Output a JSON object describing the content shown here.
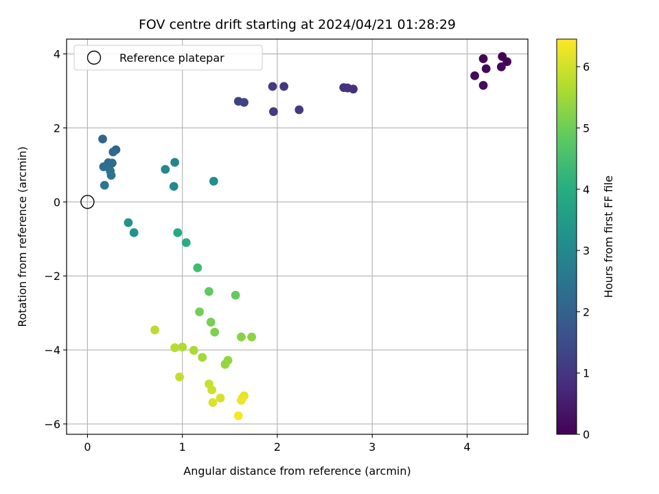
{
  "chart_data": {
    "type": "scatter",
    "title": "FOV centre drift starting at 2024/04/21 01:28:29",
    "xlabel": "Angular distance from reference (arcmin)",
    "ylabel": "Rotation from reference (arcmin)",
    "xlim": [
      -0.22,
      4.64
    ],
    "ylim": [
      -6.28,
      4.4
    ],
    "xticks": [
      0,
      1,
      2,
      3,
      4
    ],
    "yticks": [
      -6,
      -4,
      -2,
      0,
      2,
      4
    ],
    "grid": true,
    "legend": {
      "placement": "top-left",
      "label": "Reference platepar"
    },
    "reference_point": {
      "x": 0,
      "y": 0
    },
    "colorbar": {
      "label": "Hours from first FF file",
      "range": [
        0,
        6.45
      ],
      "ticks": [
        0,
        1,
        2,
        3,
        4,
        5,
        6
      ],
      "colormap": "viridis"
    },
    "points": [
      {
        "x": 4.37,
        "y": 3.93,
        "c": 0.0
      },
      {
        "x": 4.17,
        "y": 3.87,
        "c": 0.03
      },
      {
        "x": 4.42,
        "y": 3.79,
        "c": 0.06
      },
      {
        "x": 4.36,
        "y": 3.65,
        "c": 0.09
      },
      {
        "x": 4.2,
        "y": 3.6,
        "c": 0.12
      },
      {
        "x": 4.08,
        "y": 3.41,
        "c": 0.15
      },
      {
        "x": 4.17,
        "y": 3.15,
        "c": 0.18
      },
      {
        "x": 2.8,
        "y": 3.05,
        "c": 0.85
      },
      {
        "x": 2.74,
        "y": 3.08,
        "c": 0.88
      },
      {
        "x": 2.7,
        "y": 3.09,
        "c": 0.91
      },
      {
        "x": 2.07,
        "y": 3.12,
        "c": 1.05
      },
      {
        "x": 1.95,
        "y": 3.12,
        "c": 1.08
      },
      {
        "x": 2.23,
        "y": 2.49,
        "c": 1.12
      },
      {
        "x": 1.96,
        "y": 2.44,
        "c": 1.16
      },
      {
        "x": 1.59,
        "y": 2.72,
        "c": 1.25
      },
      {
        "x": 1.65,
        "y": 2.69,
        "c": 1.28
      },
      {
        "x": 0.16,
        "y": 1.7,
        "c": 2.1
      },
      {
        "x": 0.3,
        "y": 1.41,
        "c": 2.15
      },
      {
        "x": 0.27,
        "y": 1.35,
        "c": 2.2
      },
      {
        "x": 0.22,
        "y": 1.06,
        "c": 2.25
      },
      {
        "x": 0.26,
        "y": 1.05,
        "c": 2.3
      },
      {
        "x": 0.17,
        "y": 0.95,
        "c": 2.35
      },
      {
        "x": 0.24,
        "y": 0.84,
        "c": 2.4
      },
      {
        "x": 0.25,
        "y": 0.72,
        "c": 2.45
      },
      {
        "x": 0.18,
        "y": 0.45,
        "c": 2.5
      },
      {
        "x": 0.92,
        "y": 1.07,
        "c": 2.95
      },
      {
        "x": 0.82,
        "y": 0.88,
        "c": 3.0
      },
      {
        "x": 0.91,
        "y": 0.42,
        "c": 3.05
      },
      {
        "x": 1.33,
        "y": 0.56,
        "c": 3.1
      },
      {
        "x": 0.43,
        "y": -0.56,
        "c": 3.3
      },
      {
        "x": 0.49,
        "y": -0.83,
        "c": 3.35
      },
      {
        "x": 0.95,
        "y": -0.83,
        "c": 3.9
      },
      {
        "x": 1.04,
        "y": -1.1,
        "c": 4.05
      },
      {
        "x": 1.16,
        "y": -1.78,
        "c": 4.45
      },
      {
        "x": 1.28,
        "y": -2.42,
        "c": 4.85
      },
      {
        "x": 1.56,
        "y": -2.52,
        "c": 4.9
      },
      {
        "x": 1.18,
        "y": -2.97,
        "c": 5.05
      },
      {
        "x": 1.3,
        "y": -3.25,
        "c": 5.1
      },
      {
        "x": 1.34,
        "y": -3.52,
        "c": 5.15
      },
      {
        "x": 1.62,
        "y": -3.65,
        "c": 5.25
      },
      {
        "x": 1.73,
        "y": -3.65,
        "c": 5.3
      },
      {
        "x": 1.48,
        "y": -4.28,
        "c": 5.35
      },
      {
        "x": 1.45,
        "y": -4.39,
        "c": 5.4
      },
      {
        "x": 1.21,
        "y": -4.2,
        "c": 5.55
      },
      {
        "x": 1.12,
        "y": -4.01,
        "c": 5.6
      },
      {
        "x": 1.0,
        "y": -3.92,
        "c": 5.65
      },
      {
        "x": 0.92,
        "y": -3.94,
        "c": 5.7
      },
      {
        "x": 0.71,
        "y": -3.46,
        "c": 5.75
      },
      {
        "x": 0.97,
        "y": -4.73,
        "c": 5.85
      },
      {
        "x": 1.28,
        "y": -4.92,
        "c": 5.9
      },
      {
        "x": 1.31,
        "y": -5.08,
        "c": 5.95
      },
      {
        "x": 1.4,
        "y": -5.3,
        "c": 6.05
      },
      {
        "x": 1.32,
        "y": -5.42,
        "c": 6.1
      },
      {
        "x": 1.65,
        "y": -5.24,
        "c": 6.2
      },
      {
        "x": 1.63,
        "y": -5.31,
        "c": 6.25
      },
      {
        "x": 1.62,
        "y": -5.36,
        "c": 6.3
      },
      {
        "x": 1.59,
        "y": -5.78,
        "c": 6.4
      }
    ]
  }
}
